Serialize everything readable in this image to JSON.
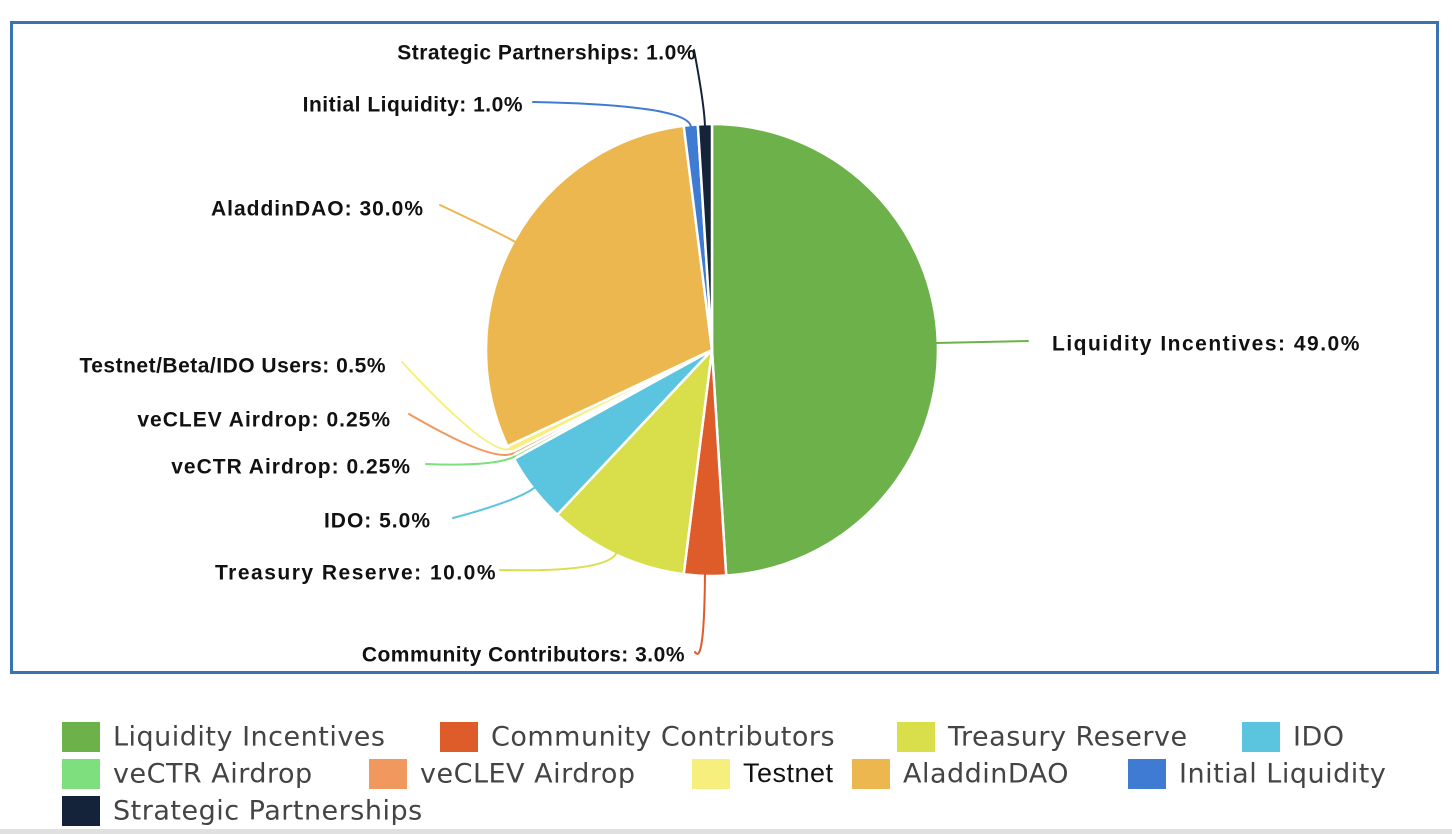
{
  "chart_data": {
    "type": "pie",
    "title": "",
    "slices": [
      {
        "label": "Liquidity Incentives",
        "callout": "Liquidity Incentives",
        "value": 49.0,
        "value_label": "49.0%",
        "color": "#6db14b"
      },
      {
        "label": "Community Contributors",
        "callout": "Community Contributors",
        "value": 3.0,
        "value_label": "3.0%",
        "color": "#de5b2a"
      },
      {
        "label": "Treasury Reserve",
        "callout": "Treasury Reserve",
        "value": 10.0,
        "value_label": "10.0%",
        "color": "#d9df4b"
      },
      {
        "label": "IDO",
        "callout": "IDO",
        "value": 5.0,
        "value_label": "5.0%",
        "color": "#5bc4df"
      },
      {
        "label": "veCTR Airdrop",
        "callout": "veCTR Airdrop",
        "value": 0.25,
        "value_label": "0.25%",
        "color": "#7ddf7d"
      },
      {
        "label": "veCLEV Airdrop",
        "callout": "veCLEV Airdrop",
        "value": 0.25,
        "value_label": "0.25%",
        "color": "#f0985e"
      },
      {
        "label": "Testnet",
        "callout": "Testnet/Beta/IDO Users",
        "value": 0.5,
        "value_label": "0.5%",
        "color": "#f7ef7d"
      },
      {
        "label": "AladdinDAO",
        "callout": "AladdinDAO",
        "value": 30.0,
        "value_label": "30.0%",
        "color": "#ebb74e"
      },
      {
        "label": "Initial Liquidity",
        "callout": "Initial Liquidity",
        "value": 1.0,
        "value_label": "1.0%",
        "color": "#3f7bd2"
      },
      {
        "label": "Strategic Partnerships",
        "callout": "Strategic Partnerships",
        "value": 1.0,
        "value_label": "1.0%",
        "color": "#14223a"
      }
    ],
    "legend_position": "bottom",
    "start_angle": "top",
    "direction": "clockwise"
  },
  "frame_color": "#3a73b4"
}
